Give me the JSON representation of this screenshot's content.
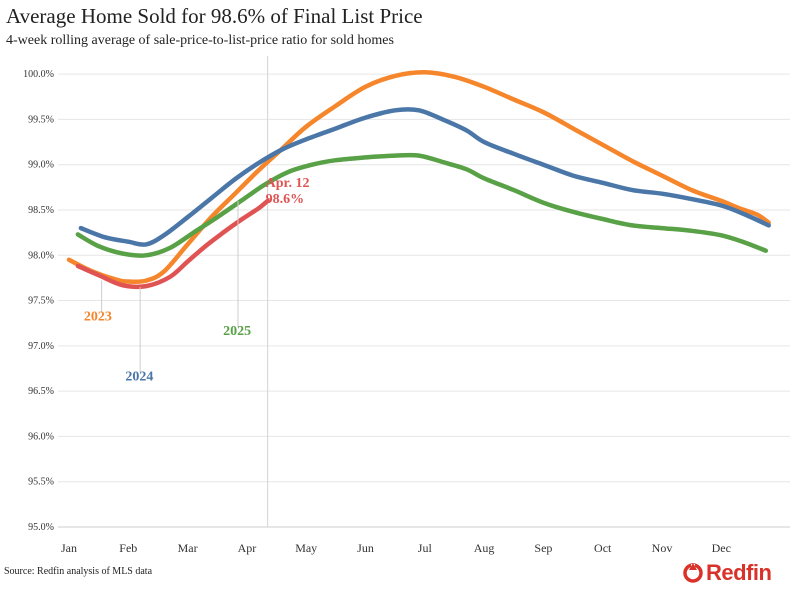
{
  "title": "Average Home Sold for 98.6% of Final List Price",
  "subtitle": "4-week rolling average of sale-price-to-list-price ratio for sold homes",
  "source": "Source: Redfin analysis of MLS data",
  "logo": {
    "text": "Redfin",
    "icon": "redfin-r-logo-icon",
    "color": "#d9322b"
  },
  "annotation": {
    "line1": "Apr. 12",
    "line2": "98.6%",
    "x": 3.35,
    "y": 98.6,
    "color": "#e05353"
  },
  "chart_data": {
    "type": "line",
    "ylim": [
      95.0,
      100.2
    ],
    "xlim": [
      0,
      12
    ],
    "yticks": [
      95.0,
      95.5,
      96.0,
      96.5,
      97.0,
      97.5,
      98.0,
      98.5,
      99.0,
      99.5,
      100.0
    ],
    "ytick_labels": [
      "95.0%",
      "95.5%",
      "96.0%",
      "96.5%",
      "97.0%",
      "97.5%",
      "98.0%",
      "98.5%",
      "99.0%",
      "99.5%",
      "100.0%"
    ],
    "xtick_labels": [
      "Jan",
      "Feb",
      "Mar",
      "Apr",
      "May",
      "Jun",
      "Jul",
      "Aug",
      "Sep",
      "Oct",
      "Nov",
      "Dec"
    ],
    "grid": true,
    "series": [
      {
        "name": "2023",
        "color": "#f6862c",
        "x": [
          0.0,
          0.4,
          0.8,
          1.0,
          1.3,
          1.6,
          2.0,
          2.4,
          2.8,
          3.2,
          3.6,
          4.0,
          4.5,
          5.0,
          5.5,
          6.0,
          6.5,
          7.0,
          7.5,
          8.0,
          8.5,
          9.0,
          9.5,
          10.0,
          10.5,
          11.0,
          11.3,
          11.6,
          11.8
        ],
        "values": [
          97.95,
          97.82,
          97.73,
          97.71,
          97.72,
          97.82,
          98.12,
          98.42,
          98.68,
          98.94,
          99.18,
          99.42,
          99.65,
          99.86,
          99.98,
          100.02,
          99.97,
          99.86,
          99.72,
          99.58,
          99.4,
          99.22,
          99.04,
          98.88,
          98.72,
          98.6,
          98.52,
          98.45,
          98.36
        ]
      },
      {
        "name": "2024",
        "color": "#4a77a8",
        "x": [
          0.2,
          0.6,
          1.0,
          1.3,
          1.6,
          2.0,
          2.4,
          2.8,
          3.2,
          3.6,
          4.0,
          4.5,
          5.0,
          5.5,
          5.9,
          6.3,
          6.7,
          7.0,
          7.5,
          8.0,
          8.5,
          9.0,
          9.5,
          10.0,
          10.5,
          11.0,
          11.4,
          11.8
        ],
        "values": [
          98.3,
          98.2,
          98.15,
          98.12,
          98.22,
          98.42,
          98.63,
          98.84,
          99.02,
          99.17,
          99.28,
          99.4,
          99.52,
          99.6,
          99.6,
          99.5,
          99.38,
          99.25,
          99.12,
          99.0,
          98.88,
          98.8,
          98.72,
          98.68,
          98.62,
          98.55,
          98.45,
          98.33
        ]
      },
      {
        "name": "2025",
        "color": "#58a146",
        "x": [
          0.15,
          0.5,
          0.9,
          1.3,
          1.7,
          2.1,
          2.5,
          2.9,
          3.3,
          3.7,
          4.1,
          4.5,
          5.0,
          5.5,
          5.9,
          6.3,
          6.7,
          7.0,
          7.5,
          8.0,
          8.5,
          9.0,
          9.5,
          10.0,
          10.5,
          11.0,
          11.4,
          11.75
        ],
        "values": [
          98.23,
          98.1,
          98.02,
          98.0,
          98.08,
          98.25,
          98.42,
          98.6,
          98.78,
          98.92,
          99.0,
          99.05,
          99.08,
          99.1,
          99.1,
          99.03,
          98.95,
          98.85,
          98.72,
          98.58,
          98.48,
          98.4,
          98.33,
          98.3,
          98.27,
          98.22,
          98.14,
          98.05
        ]
      },
      {
        "name": "2025-ytd",
        "color": "#e05353",
        "x": [
          0.15,
          0.5,
          0.9,
          1.3,
          1.7,
          2.0,
          2.3,
          2.6,
          2.9,
          3.2,
          3.35
        ],
        "values": [
          97.88,
          97.78,
          97.67,
          97.66,
          97.76,
          97.93,
          98.1,
          98.25,
          98.39,
          98.52,
          98.6
        ]
      }
    ],
    "labels": [
      {
        "text": "2023",
        "color": "#f6862c",
        "x": 0.25,
        "y": 97.28,
        "leader_from": 97.72,
        "leader_x": 0.55
      },
      {
        "text": "2024",
        "color": "#4a77a8",
        "x": 0.95,
        "y": 96.62,
        "leader_from": 97.65,
        "leader_x": 1.2
      },
      {
        "text": "2025",
        "color": "#58a146",
        "x": 2.6,
        "y": 97.12,
        "leader_from": 98.6,
        "leader_x": 2.85
      }
    ],
    "marker_x": 3.35
  }
}
